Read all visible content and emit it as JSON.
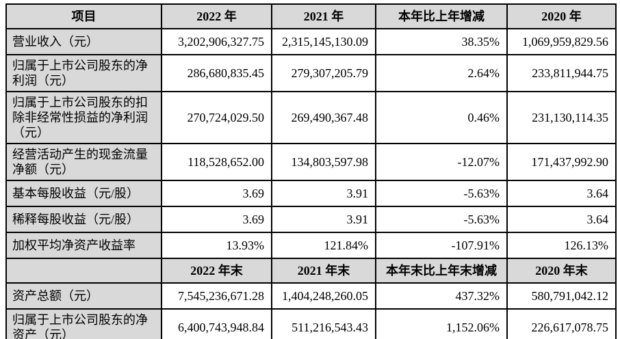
{
  "table": {
    "header_bg": "#d9d9d9",
    "border_color": "#000000",
    "annual_header": {
      "item": "项目",
      "y2022": "2022 年",
      "y2021": "2021 年",
      "change": "本年比上年增减",
      "y2020": "2020 年"
    },
    "annual_rows": [
      {
        "label": "营业收入（元）",
        "y2022": "3,202,906,327.75",
        "y2021": "2,315,145,130.09",
        "change": "38.35%",
        "y2020": "1,069,959,829.56"
      },
      {
        "label": "归属于上市公司股东的净利润（元）",
        "y2022": "286,680,835.45",
        "y2021": "279,307,205.79",
        "change": "2.64%",
        "y2020": "233,811,944.75"
      },
      {
        "label": "归属于上市公司股东的扣除非经常性损益的净利润（元）",
        "y2022": "270,724,029.50",
        "y2021": "269,490,367.48",
        "change": "0.46%",
        "y2020": "231,130,114.35"
      },
      {
        "label": "经营活动产生的现金流量净额（元）",
        "y2022": "118,528,652.00",
        "y2021": "134,803,597.98",
        "change": "-12.07%",
        "y2020": "171,437,992.90"
      },
      {
        "label": "基本每股收益（元/股）",
        "y2022": "3.69",
        "y2021": "3.91",
        "change": "-5.63%",
        "y2020": "3.64"
      },
      {
        "label": "稀释每股收益（元/股）",
        "y2022": "3.69",
        "y2021": "3.91",
        "change": "-5.63%",
        "y2020": "3.64"
      },
      {
        "label": "加权平均净资产收益率",
        "y2022": "13.93%",
        "y2021": "121.84%",
        "change": "-107.91%",
        "y2020": "126.13%"
      }
    ],
    "yearend_header": {
      "item": "",
      "y2022": "2022 年末",
      "y2021": "2021 年末",
      "change": "本年末比上年末增减",
      "y2020": "2020 年末"
    },
    "yearend_rows": [
      {
        "label": "资产总额（元）",
        "y2022": "7,545,236,671.28",
        "y2021": "1,404,248,260.05",
        "change": "437.32%",
        "y2020": "580,791,042.12"
      },
      {
        "label": "归属于上市公司股东的净资产（元）",
        "y2022": "6,400,743,948.84",
        "y2021": "511,216,543.43",
        "change": "1,152.06%",
        "y2020": "226,617,078.75"
      }
    ]
  }
}
